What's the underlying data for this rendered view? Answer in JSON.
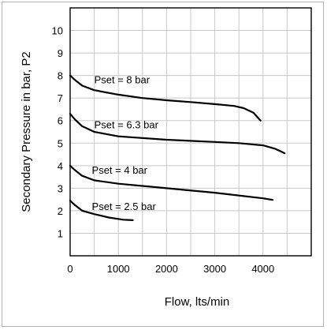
{
  "chart_data": {
    "type": "line",
    "title": "",
    "xlabel": "Flow, lts/min",
    "ylabel": "Secondary Pressure in bar, P2",
    "xlim": [
      0,
      5000
    ],
    "ylim": [
      0,
      11
    ],
    "xticks": [
      0,
      1000,
      2000,
      3000,
      4000
    ],
    "yticks": [
      1,
      2,
      3,
      4,
      5,
      6,
      7,
      8,
      9,
      10
    ],
    "grid": true,
    "legend": "none",
    "series": [
      {
        "name": "Pset = 8 bar",
        "x": [
          0,
          100,
          250,
          500,
          1000,
          1500,
          2000,
          2500,
          3000,
          3400,
          3600,
          3800,
          3950
        ],
        "y": [
          8.0,
          7.8,
          7.55,
          7.35,
          7.15,
          7.0,
          6.9,
          6.82,
          6.73,
          6.65,
          6.55,
          6.35,
          6.0
        ]
      },
      {
        "name": "Pset = 6.3 bar",
        "x": [
          0,
          100,
          250,
          500,
          1000,
          2000,
          3000,
          3500,
          4000,
          4250,
          4450
        ],
        "y": [
          6.3,
          6.05,
          5.75,
          5.5,
          5.3,
          5.15,
          5.05,
          5.0,
          4.9,
          4.75,
          4.55
        ]
      },
      {
        "name": "Pset = 4 bar",
        "x": [
          0,
          100,
          250,
          500,
          1000,
          2000,
          3000,
          4000,
          4200
        ],
        "y": [
          4.0,
          3.8,
          3.55,
          3.35,
          3.2,
          3.0,
          2.8,
          2.55,
          2.48
        ]
      },
      {
        "name": "Pset = 2.5 bar",
        "x": [
          0,
          100,
          250,
          500,
          800,
          1100,
          1300
        ],
        "y": [
          2.45,
          2.25,
          2.0,
          1.85,
          1.7,
          1.6,
          1.58
        ]
      }
    ],
    "annotations": [
      "Pset = 8 bar",
      "Pset = 6.3 bar",
      "Pset = 4 bar",
      "Pset = 2.5 bar"
    ]
  }
}
